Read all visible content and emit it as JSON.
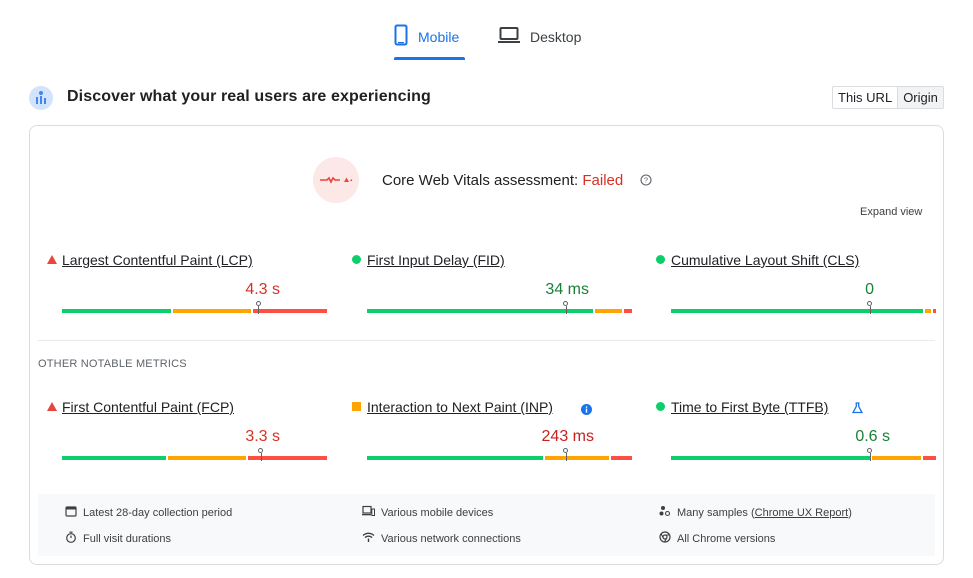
{
  "tabs": {
    "mobile_label": "Mobile",
    "desktop_label": "Desktop",
    "active": "mobile"
  },
  "header": {
    "title": "Discover what your real users are experiencing",
    "toggle": [
      "This URL",
      "Origin"
    ],
    "toggle_active": "Origin"
  },
  "assessment": {
    "label": "Core Web Vitals assessment:",
    "status": "Failed",
    "expand_label": "Expand view"
  },
  "core_metrics": [
    {
      "name": "Largest Contentful Paint (LCP)",
      "value": "4.3 s",
      "status": "poor",
      "distribution": {
        "good_pct": 42,
        "ni_pct": 30,
        "poor_pct": 28
      },
      "marker_pct": 74
    },
    {
      "name": "First Input Delay (FID)",
      "value": "34 ms",
      "status": "good",
      "distribution": {
        "good_pct": 86,
        "ni_pct": 11,
        "poor_pct": 3
      },
      "marker_pct": 75
    },
    {
      "name": "Cumulative Layout Shift (CLS)",
      "value": "0",
      "status": "good",
      "distribution": {
        "good_pct": 96,
        "ni_pct": 3,
        "poor_pct": 1
      },
      "marker_pct": 75
    }
  ],
  "other_title": "OTHER NOTABLE METRICS",
  "other_metrics": [
    {
      "name": "First Contentful Paint (FCP)",
      "value": "3.3 s",
      "status": "poor",
      "distribution": {
        "good_pct": 40,
        "ni_pct": 30,
        "poor_pct": 30
      },
      "marker_pct": 75
    },
    {
      "name": "Interaction to Next Paint (INP)",
      "value": "243 ms",
      "status": "ni",
      "distribution": {
        "good_pct": 67,
        "ni_pct": 25,
        "poor_pct": 8
      },
      "marker_pct": 75
    },
    {
      "name": "Time to First Byte (TTFB)",
      "value": "0.6 s",
      "status": "good",
      "distribution": {
        "good_pct": 76,
        "ni_pct": 19,
        "poor_pct": 5
      },
      "marker_pct": 75
    }
  ],
  "footer": {
    "period": "Latest 28-day collection period",
    "devices": "Various mobile devices",
    "samples_prefix": "Many samples (",
    "samples_link": "Chrome UX Report",
    "samples_suffix": ")",
    "durations": "Full visit durations",
    "network": "Various network connections",
    "versions": "All Chrome versions"
  },
  "colors": {
    "good": "#0cce6b",
    "needs_improvement": "#ffa400",
    "poor": "#ff4e42",
    "good_text": "#188038",
    "ni_text": "#c5221f",
    "poor_text": "#d93025",
    "accent": "#1a73e8"
  }
}
